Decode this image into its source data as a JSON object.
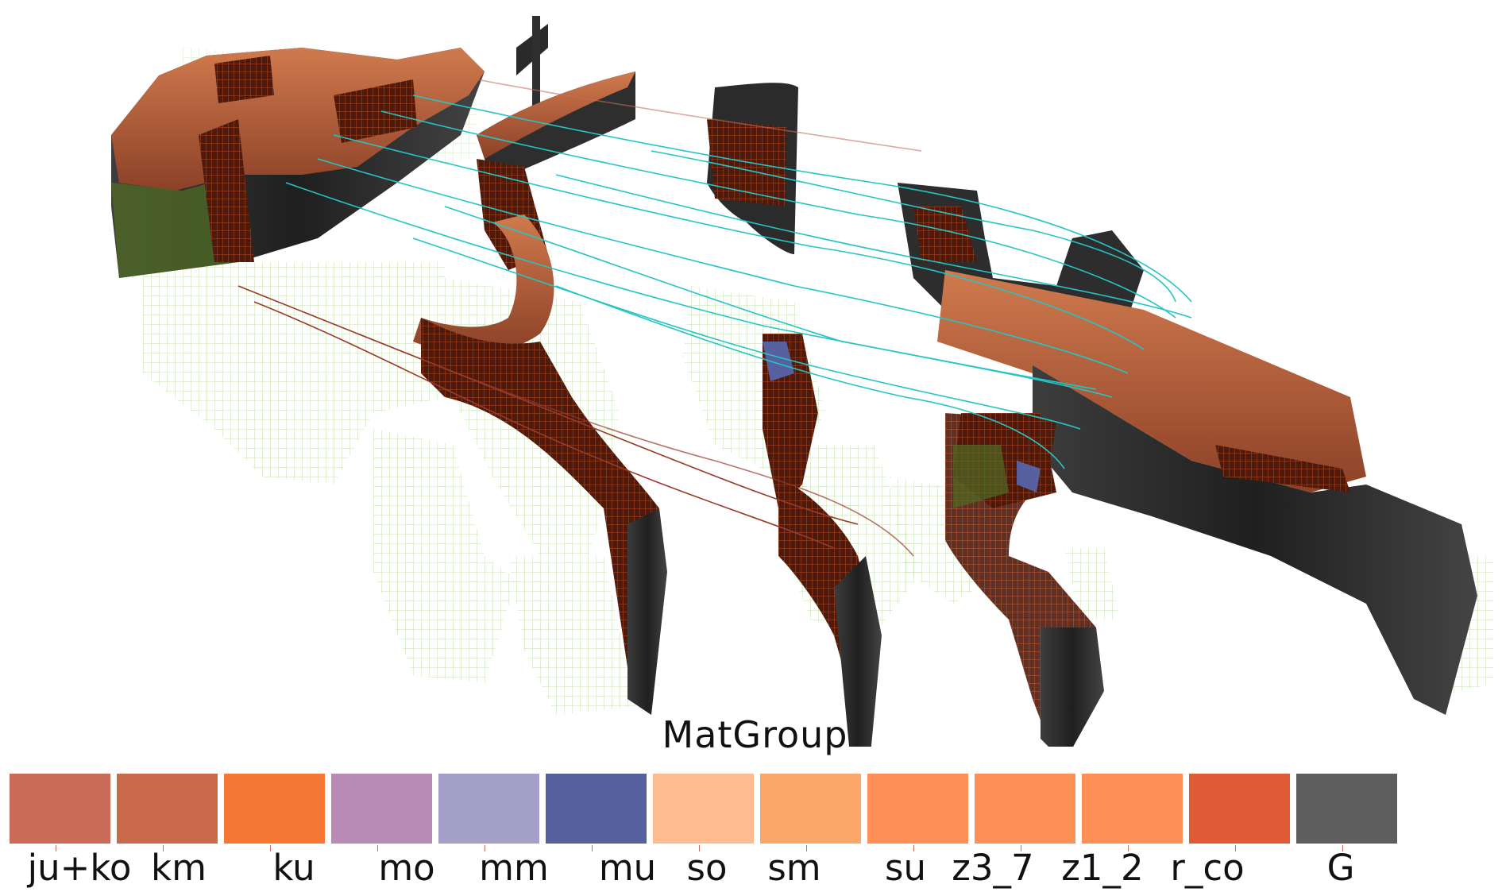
{
  "legend": {
    "title": "MatGroup",
    "items": [
      {
        "label": "ju+ko",
        "color": "#c96b57"
      },
      {
        "label": "km",
        "color": "#c96b4a"
      },
      {
        "label": "ku",
        "color": "#f67634"
      },
      {
        "label": "mo",
        "color": "#b78bb6"
      },
      {
        "label": "mm",
        "color": "#a39fc8"
      },
      {
        "label": "mu",
        "color": "#5761a0"
      },
      {
        "label": "so",
        "color": "#fdbb8f"
      },
      {
        "label": "sm",
        "color": "#fca66a"
      },
      {
        "label": "su",
        "color": "#fe8f57"
      },
      {
        "label": "z3_7",
        "color": "#fe8f57"
      },
      {
        "label": "z1_2",
        "color": "#fe8f57"
      },
      {
        "label": "r_co",
        "color": "#df5a35"
      },
      {
        "label": "G",
        "color": "#5e5e5e"
      }
    ]
  },
  "scene": {
    "description_colors": {
      "slab_dark": "#2b2b2b",
      "slab_top": "#b8643f",
      "slab_red": "#6a2412",
      "mesh_green": "#9fcf76",
      "streamline_cyan": "#27c4c4",
      "streamline_red": "#9a3a2a"
    }
  }
}
